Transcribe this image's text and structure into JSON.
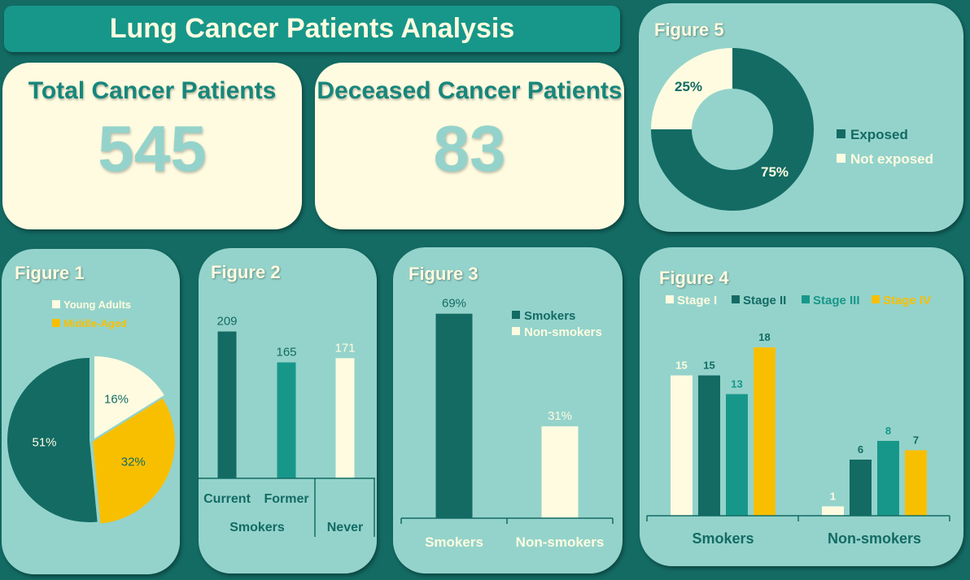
{
  "header": {
    "title": "Lung Cancer Patients Analysis"
  },
  "kpis": [
    {
      "label": "Total Cancer Patients",
      "value": "545"
    },
    {
      "label": "Deceased Cancer Patients",
      "value": "83"
    }
  ],
  "colors": {
    "dark_teal": "#136b64",
    "teal": "#17978a",
    "light_teal": "#94d3cb",
    "cream": "#fefbe0",
    "yellow": "#f8bf00"
  },
  "chart_data": [
    {
      "id": "figure1",
      "type": "pie",
      "title": "Figure 1",
      "legend": [
        "Young Adults",
        "Middle-Aged"
      ],
      "slices": [
        {
          "name": "Young Adults",
          "value": 16,
          "label": "16%",
          "color": "#fefbe0"
        },
        {
          "name": "Middle-Aged",
          "value": 32,
          "label": "32%",
          "color": "#f8bf00"
        },
        {
          "name": "",
          "value": 51,
          "label": "51%",
          "color": "#136b64"
        }
      ]
    },
    {
      "id": "figure2",
      "type": "bar",
      "title": "Figure 2",
      "categories": [
        "Current",
        "Former",
        "Never"
      ],
      "groups": [
        "Smokers",
        "Never"
      ],
      "values": [
        209,
        165,
        171
      ],
      "colors": [
        "#136b64",
        "#17978a",
        "#fefbe0"
      ],
      "ylim": [
        0,
        220
      ]
    },
    {
      "id": "figure3",
      "type": "bar",
      "title": "Figure 3",
      "categories": [
        "Smokers",
        "Non-smokers"
      ],
      "values": [
        69,
        31
      ],
      "labels": [
        "69%",
        "31%"
      ],
      "colors": [
        "#136b64",
        "#fefbe0"
      ],
      "legend": [
        "Smokers",
        "Non-smokers"
      ],
      "ylim": [
        0,
        70
      ]
    },
    {
      "id": "figure4",
      "type": "bar",
      "title": "Figure 4",
      "categories": [
        "Smokers",
        "Non-smokers"
      ],
      "series": [
        {
          "name": "Stage I",
          "values": [
            15,
            1
          ],
          "color": "#fefbe0"
        },
        {
          "name": "Stage II",
          "values": [
            15,
            6
          ],
          "color": "#136b64"
        },
        {
          "name": "Stage III",
          "values": [
            13,
            8
          ],
          "color": "#17978a"
        },
        {
          "name": "Stage IV",
          "values": [
            18,
            7
          ],
          "color": "#f8bf00"
        }
      ],
      "ylim": [
        0,
        20
      ]
    },
    {
      "id": "figure5",
      "type": "pie",
      "title": "Figure 5",
      "donut": true,
      "slices": [
        {
          "name": "Exposed",
          "value": 75,
          "label": "75%",
          "color": "#136b64"
        },
        {
          "name": "Not exposed",
          "value": 25,
          "label": "25%",
          "color": "#fefbe0"
        }
      ],
      "legend": [
        "Exposed",
        "Not exposed"
      ]
    }
  ]
}
